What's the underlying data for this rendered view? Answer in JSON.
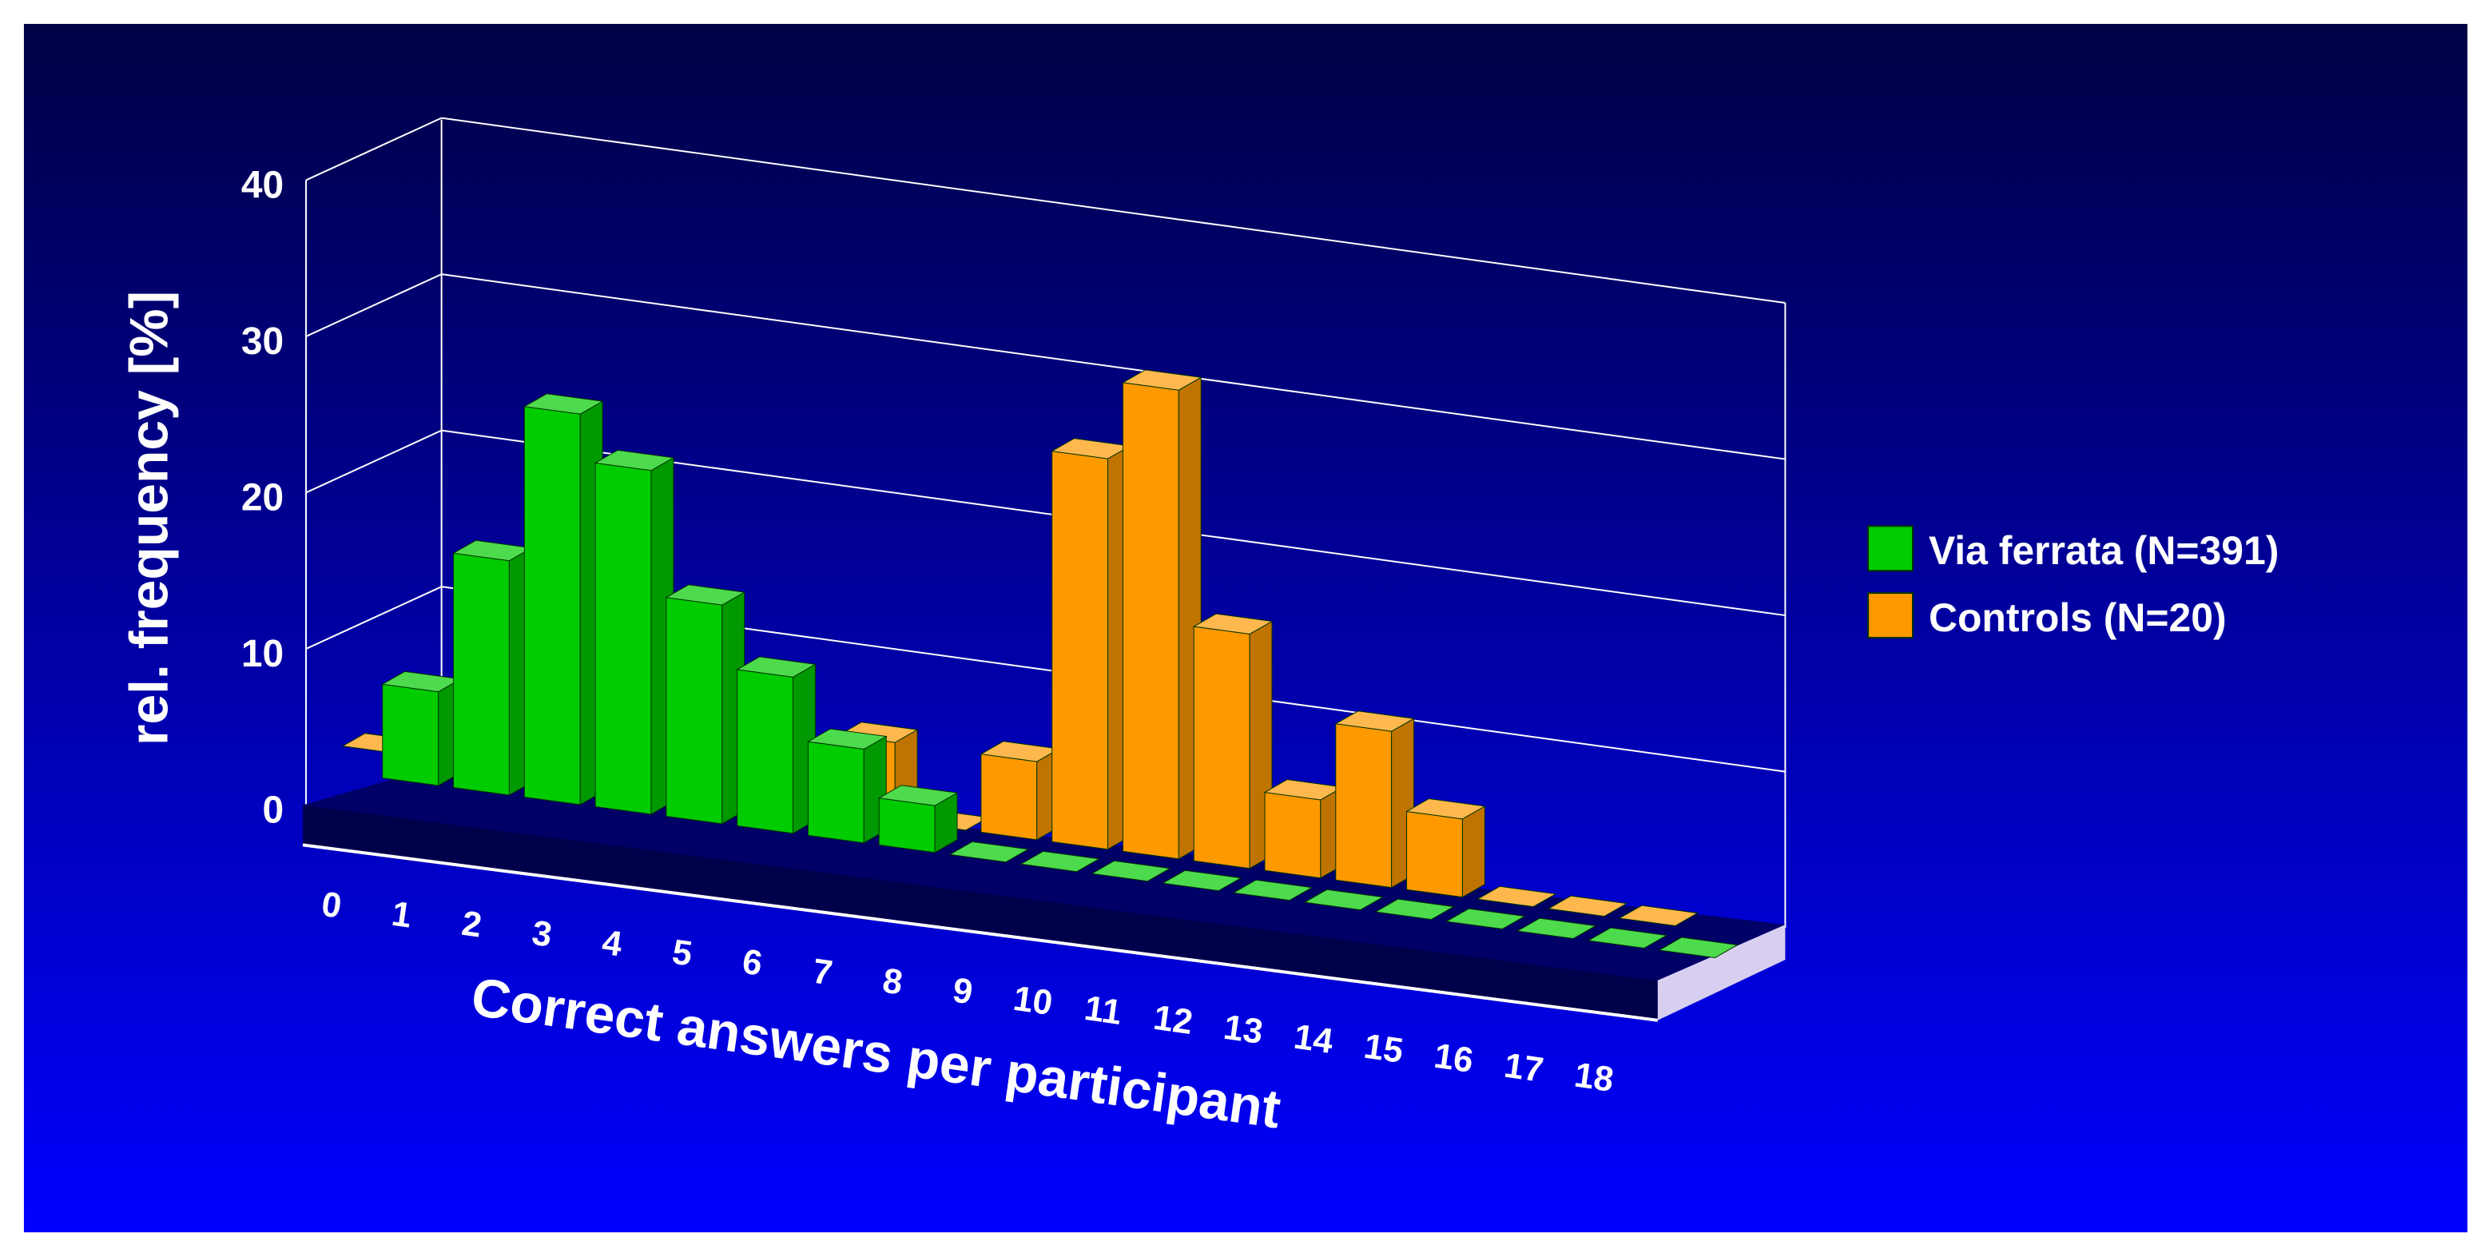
{
  "chart_data": {
    "type": "bar3d",
    "ylabel": "rel. frequency [%]",
    "xlabel": "Correct answers per participant",
    "categories": [
      "0",
      "1",
      "2",
      "3",
      "4",
      "5",
      "6",
      "7",
      "8",
      "9",
      "10",
      "11",
      "12",
      "13",
      "14",
      "15",
      "16",
      "17",
      "18"
    ],
    "series": [
      {
        "name": "Via ferrata (N=391)",
        "color": "#00cc00",
        "values": [
          6,
          15,
          25,
          22,
          14,
          10,
          6,
          3,
          0,
          0,
          0,
          0,
          0,
          0,
          0,
          0,
          0,
          0,
          0
        ]
      },
      {
        "name": "Controls (N=20)",
        "color": "#ff9900",
        "values": [
          0,
          0,
          0,
          0,
          0,
          0,
          0,
          5,
          0,
          5,
          25,
          30,
          15,
          5,
          10,
          5,
          0,
          0,
          0
        ]
      }
    ],
    "ylim": [
      0,
      40
    ],
    "yticks": [
      0,
      10,
      20,
      30,
      40
    ],
    "grid": true,
    "legend": "right"
  }
}
